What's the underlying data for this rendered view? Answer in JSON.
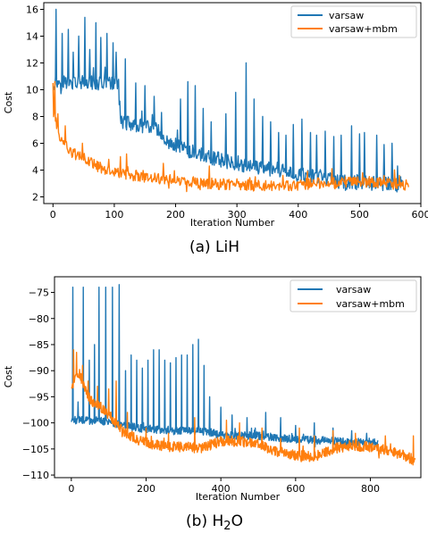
{
  "colors": {
    "series_0": "#1f77b4",
    "series_1": "#ff7f0e"
  },
  "chart_data": [
    {
      "type": "line",
      "caption_prefix": "(a) ",
      "caption_main": "LiH",
      "caption_sub": "",
      "caption_tail": "",
      "xlabel": "Iteration Number",
      "ylabel": "Cost",
      "xlim": [
        -15,
        600
      ],
      "ylim": [
        1.5,
        16.5
      ],
      "xticks": [
        0,
        100,
        200,
        300,
        400,
        500,
        600
      ],
      "yticks": [
        2,
        4,
        6,
        8,
        10,
        12,
        14,
        16
      ],
      "legend_position": "top-right",
      "series": [
        {
          "name": "varsaw",
          "n": 570,
          "trend": [
            [
              0,
              10.5
            ],
            [
              10,
              10.6
            ],
            [
              50,
              10.5
            ],
            [
              105,
              10.5
            ],
            [
              112,
              7.6
            ],
            [
              170,
              7.0
            ],
            [
              190,
              6.0
            ],
            [
              250,
              5.0
            ],
            [
              320,
              4.3
            ],
            [
              400,
              3.7
            ],
            [
              470,
              3.1
            ],
            [
              520,
              3.0
            ],
            [
              570,
              2.9
            ]
          ],
          "noise": 0.55,
          "spikes": [
            [
              5,
              16.0
            ],
            [
              15,
              14.2
            ],
            [
              25,
              14.5
            ],
            [
              33,
              12.8
            ],
            [
              42,
              14.0
            ],
            [
              52,
              15.4
            ],
            [
              60,
              13.0
            ],
            [
              70,
              15.0
            ],
            [
              78,
              13.9
            ],
            [
              88,
              14.2
            ],
            [
              98,
              13.5
            ],
            [
              103,
              12.8
            ],
            [
              118,
              12.3
            ],
            [
              135,
              10.5
            ],
            [
              150,
              10.3
            ],
            [
              165,
              9.5
            ],
            [
              177,
              8.3
            ],
            [
              208,
              9.3
            ],
            [
              220,
              10.6
            ],
            [
              232,
              10.3
            ],
            [
              245,
              8.6
            ],
            [
              258,
              7.6
            ],
            [
              282,
              8.2
            ],
            [
              298,
              9.8
            ],
            [
              315,
              12.0
            ],
            [
              328,
              9.3
            ],
            [
              342,
              8.0
            ],
            [
              355,
              7.6
            ],
            [
              368,
              6.8
            ],
            [
              380,
              6.6
            ],
            [
              392,
              7.4
            ],
            [
              406,
              7.8
            ],
            [
              420,
              6.8
            ],
            [
              430,
              6.6
            ],
            [
              444,
              6.9
            ],
            [
              458,
              6.5
            ],
            [
              470,
              6.6
            ],
            [
              487,
              7.3
            ],
            [
              500,
              6.7
            ],
            [
              508,
              6.8
            ],
            [
              528,
              6.6
            ],
            [
              540,
              5.9
            ],
            [
              553,
              6.0
            ],
            [
              562,
              4.3
            ]
          ]
        },
        {
          "name": "varsaw+mbm",
          "n": 580,
          "trend": [
            [
              0,
              8.6
            ],
            [
              5,
              7.5
            ],
            [
              12,
              6.4
            ],
            [
              30,
              5.3
            ],
            [
              50,
              4.9
            ],
            [
              75,
              4.2
            ],
            [
              100,
              3.8
            ],
            [
              150,
              3.5
            ],
            [
              200,
              3.2
            ],
            [
              250,
              3.0
            ],
            [
              300,
              2.9
            ],
            [
              350,
              2.8
            ],
            [
              400,
              2.9
            ],
            [
              450,
              3.1
            ],
            [
              500,
              3.1
            ],
            [
              540,
              3.0
            ],
            [
              580,
              2.9
            ]
          ],
          "noise": 0.42,
          "spikes": [
            [
              0,
              10.5
            ],
            [
              3,
              10.6
            ],
            [
              8,
              8.2
            ],
            [
              20,
              7.3
            ],
            [
              48,
              6.0
            ],
            [
              110,
              5.0
            ],
            [
              120,
              5.2
            ],
            [
              180,
              4.5
            ],
            [
              255,
              4.3
            ],
            [
              330,
              3.5
            ],
            [
              375,
              3.6
            ],
            [
              415,
              3.9
            ],
            [
              455,
              4.1
            ],
            [
              505,
              3.8
            ],
            [
              565,
              3.6
            ]
          ]
        }
      ]
    },
    {
      "type": "line",
      "caption_prefix": "(b) ",
      "caption_main": "H",
      "caption_sub": "2",
      "caption_tail": "O",
      "xlabel": "Iteration Number",
      "ylabel": "Cost",
      "xlim": [
        -45,
        935
      ],
      "ylim": [
        -110.5,
        -72
      ],
      "xticks": [
        0,
        200,
        400,
        600,
        800
      ],
      "yticks": [
        -110,
        -105,
        -100,
        -95,
        -90,
        -85,
        -80,
        -75
      ],
      "legend_position": "top-right",
      "series": [
        {
          "name": "varsaw",
          "n": 820,
          "trend": [
            [
              0,
              -99.5
            ],
            [
              40,
              -99.5
            ],
            [
              100,
              -99.8
            ],
            [
              140,
              -100.5
            ],
            [
              200,
              -101.2
            ],
            [
              300,
              -101.5
            ],
            [
              370,
              -101.8
            ],
            [
              400,
              -102.3
            ],
            [
              500,
              -102.5
            ],
            [
              600,
              -103.1
            ],
            [
              700,
              -103.5
            ],
            [
              820,
              -103.8
            ]
          ],
          "noise": 0.75,
          "spikes": [
            [
              4,
              -74.0
            ],
            [
              18,
              -96.0
            ],
            [
              32,
              -74.0
            ],
            [
              48,
              -88.0
            ],
            [
              62,
              -85.0
            ],
            [
              74,
              -74.0
            ],
            [
              92,
              -74.0
            ],
            [
              110,
              -74.0
            ],
            [
              128,
              -73.5
            ],
            [
              145,
              -90.0
            ],
            [
              160,
              -87.0
            ],
            [
              175,
              -88.0
            ],
            [
              190,
              -89.5
            ],
            [
              205,
              -88.0
            ],
            [
              220,
              -86.0
            ],
            [
              235,
              -86.0
            ],
            [
              250,
              -88.0
            ],
            [
              265,
              -88.5
            ],
            [
              280,
              -87.5
            ],
            [
              295,
              -87.0
            ],
            [
              310,
              -87.0
            ],
            [
              325,
              -85.0
            ],
            [
              340,
              -84.0
            ],
            [
              355,
              -89.0
            ],
            [
              370,
              -95.0
            ],
            [
              400,
              -97.0
            ],
            [
              430,
              -98.5
            ],
            [
              470,
              -99.0
            ],
            [
              520,
              -98.0
            ],
            [
              560,
              -99.0
            ],
            [
              600,
              -100.5
            ],
            [
              650,
              -100.0
            ],
            [
              700,
              -101.0
            ],
            [
              750,
              -101.5
            ],
            [
              790,
              -102.0
            ]
          ]
        },
        {
          "name": "varsaw+mbm",
          "n": 920,
          "trend": [
            [
              0,
              -93.0
            ],
            [
              20,
              -90.5
            ],
            [
              50,
              -95.5
            ],
            [
              80,
              -97.0
            ],
            [
              110,
              -99.5
            ],
            [
              140,
              -101.5
            ],
            [
              180,
              -103.5
            ],
            [
              250,
              -104.5
            ],
            [
              350,
              -104.8
            ],
            [
              400,
              -103.5
            ],
            [
              450,
              -103.5
            ],
            [
              500,
              -104.0
            ],
            [
              550,
              -105.5
            ],
            [
              600,
              -106.2
            ],
            [
              650,
              -106.5
            ],
            [
              700,
              -105.0
            ],
            [
              750,
              -104.2
            ],
            [
              800,
              -104.8
            ],
            [
              850,
              -105.2
            ],
            [
              900,
              -106.5
            ],
            [
              920,
              -107.3
            ]
          ],
          "noise": 1.0,
          "spikes": [
            [
              6,
              -86.0
            ],
            [
              14,
              -86.5
            ],
            [
              30,
              -89.0
            ],
            [
              45,
              -92.0
            ],
            [
              70,
              -93.0
            ],
            [
              100,
              -93.5
            ],
            [
              120,
              -92.0
            ],
            [
              150,
              -98.0
            ],
            [
              200,
              -101.0
            ],
            [
              260,
              -102.0
            ],
            [
              330,
              -99.0
            ],
            [
              415,
              -99.5
            ],
            [
              450,
              -100.0
            ],
            [
              510,
              -101.0
            ],
            [
              560,
              -103.0
            ],
            [
              610,
              -101.0
            ],
            [
              650,
              -102.5
            ],
            [
              700,
              -101.5
            ],
            [
              760,
              -102.0
            ],
            [
              840,
              -102.5
            ],
            [
              915,
              -102.5
            ]
          ]
        }
      ]
    }
  ]
}
